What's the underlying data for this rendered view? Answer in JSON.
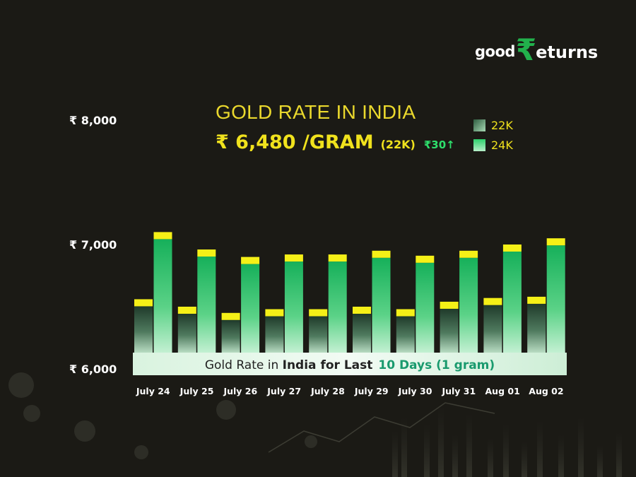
{
  "logo": {
    "part1": "good",
    "rupee": "₹",
    "part2": "eturns"
  },
  "header": {
    "title": "GOLD RATE IN INDIA",
    "price": "₹ 6,480 /GRAM",
    "unit": "(22K)",
    "change": "₹30↑"
  },
  "colors": {
    "background": "#1b1a15",
    "accent_yellow": "#f0e21d",
    "bar_24k": "#22b45e",
    "bar_22k": "#2d4d39",
    "bar_cap": "#f5f017",
    "change_green": "#2ee06c"
  },
  "chart_data": {
    "type": "bar",
    "categories": [
      "July 24",
      "July 25",
      "July 26",
      "July 27",
      "July 28",
      "July 29",
      "July 30",
      "July 31",
      "Aug 01",
      "Aug 02"
    ],
    "series": [
      {
        "name": "22K",
        "values": [
          6560,
          6500,
          6450,
          6480,
          6480,
          6500,
          6480,
          6540,
          6570,
          6580
        ]
      },
      {
        "name": "24K",
        "values": [
          7100,
          6960,
          6900,
          6920,
          6920,
          6950,
          6910,
          6950,
          7000,
          7050
        ]
      }
    ],
    "yticks": [
      "₹ 8,000",
      "₹ 7,000",
      "₹ 6,000"
    ],
    "ylim": [
      6000,
      8000
    ],
    "legend_position": "top-right",
    "banner": {
      "part1": "Gold Rate in ",
      "part2": "India for Last",
      "part3": "10 Days (1 gram)"
    }
  }
}
